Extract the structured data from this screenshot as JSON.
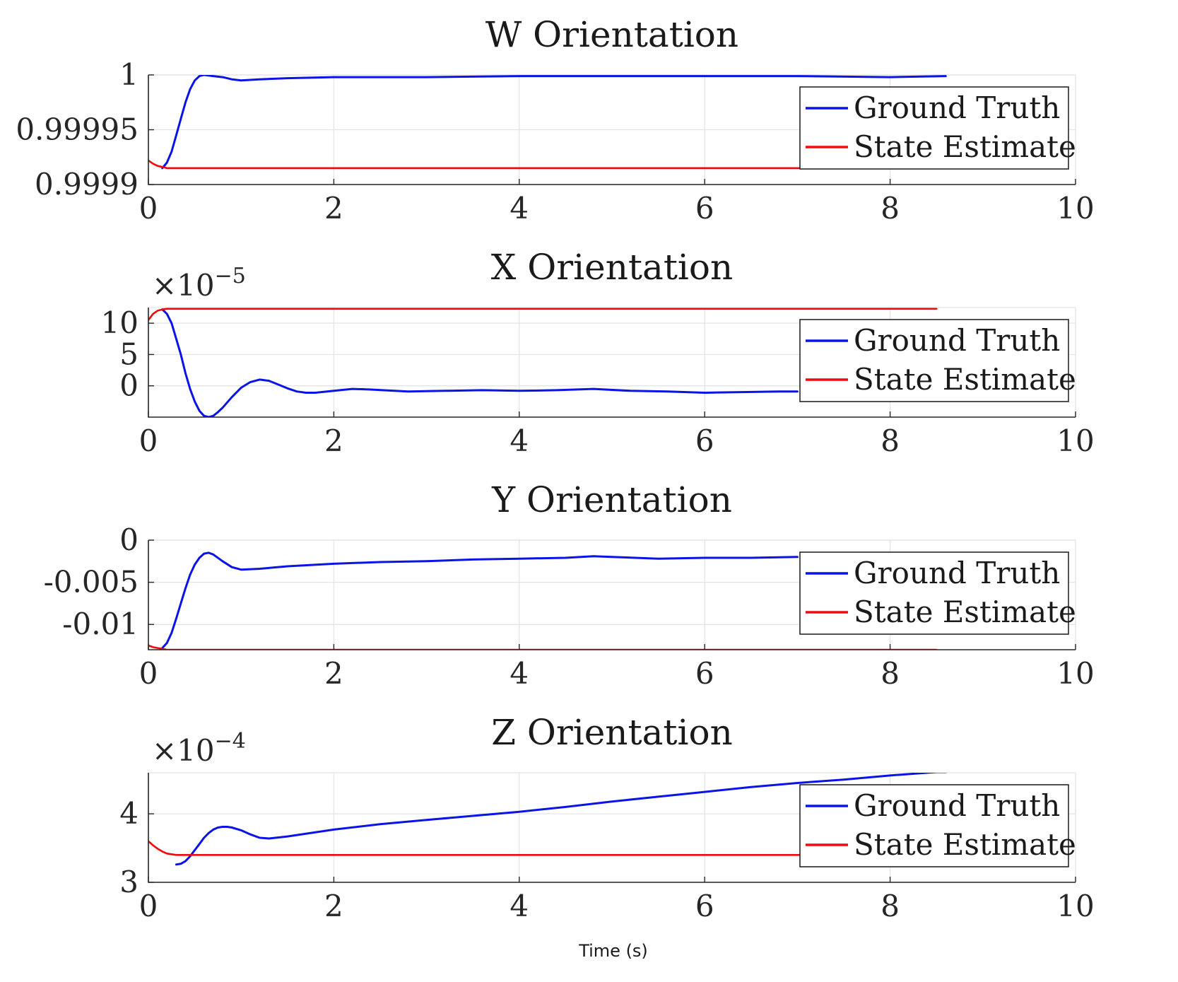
{
  "colors": {
    "ground_truth": "#0a14e6",
    "state_estimate": "#f00a0a"
  },
  "xlabel": "Time (s)",
  "chart_data": [
    {
      "type": "line",
      "title": "W Orientation",
      "multiplier": null,
      "xlim": [
        0,
        10
      ],
      "ylim": [
        0.9999,
        1.0
      ],
      "xticks": [
        0,
        2,
        4,
        6,
        8,
        10
      ],
      "yticks": [
        0.9999,
        0.99995,
        1
      ],
      "ytick_labels": [
        "0.9999",
        "0.99995",
        "1"
      ],
      "grid": true,
      "legend_position": "right",
      "series": [
        {
          "name": "Ground Truth",
          "color_key": "ground_truth",
          "x": [
            0.15,
            0.2,
            0.25,
            0.3,
            0.35,
            0.4,
            0.45,
            0.5,
            0.55,
            0.6,
            0.7,
            0.8,
            0.9,
            1.0,
            1.2,
            1.5,
            2.0,
            3.0,
            4.0,
            5.0,
            6.0,
            7.0,
            8.0,
            8.6
          ],
          "y": [
            0.999915,
            0.99992,
            0.99993,
            0.999945,
            0.99996,
            0.999975,
            0.999987,
            0.999995,
            0.999999,
            1.0,
            0.999999,
            0.999998,
            0.999996,
            0.999995,
            0.999996,
            0.999997,
            0.999998,
            0.999998,
            0.999999,
            0.999999,
            0.999999,
            0.999999,
            0.999998,
            0.999999
          ]
        },
        {
          "name": "State Estimate",
          "color_key": "state_estimate",
          "x": [
            0,
            0.05,
            0.1,
            0.15,
            0.2,
            1,
            2,
            4,
            6,
            8,
            8.5
          ],
          "y": [
            0.999922,
            0.999919,
            0.999917,
            0.999916,
            0.999915,
            0.999915,
            0.999915,
            0.999915,
            0.999915,
            0.999915,
            0.999915
          ]
        }
      ]
    },
    {
      "type": "line",
      "title": "X Orientation",
      "multiplier": "-5",
      "xlim": [
        0,
        10
      ],
      "ylim": [
        -5,
        12.5
      ],
      "xticks": [
        0,
        2,
        4,
        6,
        8,
        10
      ],
      "yticks": [
        0,
        5,
        10
      ],
      "ytick_labels": [
        "0",
        "5",
        "10"
      ],
      "grid": true,
      "legend_position": "right",
      "series": [
        {
          "name": "Ground Truth",
          "color_key": "ground_truth",
          "x": [
            0.15,
            0.2,
            0.25,
            0.3,
            0.35,
            0.4,
            0.45,
            0.5,
            0.55,
            0.6,
            0.65,
            0.7,
            0.75,
            0.8,
            0.9,
            1.0,
            1.1,
            1.2,
            1.3,
            1.4,
            1.5,
            1.6,
            1.7,
            1.8,
            2.0,
            2.2,
            2.4,
            2.8,
            3.2,
            3.6,
            4.0,
            4.4,
            4.8,
            5.2,
            5.6,
            6.0,
            6.4,
            6.8,
            7.0
          ],
          "y": [
            12.2,
            11.5,
            10.0,
            7.5,
            5.0,
            2.0,
            -0.5,
            -2.5,
            -4.0,
            -4.8,
            -5.0,
            -4.8,
            -4.2,
            -3.5,
            -1.8,
            -0.3,
            0.6,
            1.0,
            0.8,
            0.2,
            -0.4,
            -0.9,
            -1.1,
            -1.1,
            -0.8,
            -0.5,
            -0.6,
            -0.9,
            -0.8,
            -0.7,
            -0.8,
            -0.7,
            -0.5,
            -0.8,
            -0.9,
            -1.1,
            -1.0,
            -0.9,
            -0.9
          ]
        },
        {
          "name": "State Estimate",
          "color_key": "state_estimate",
          "x": [
            0,
            0.05,
            0.1,
            0.15,
            0.2,
            1,
            2,
            4,
            6,
            8,
            8.5
          ],
          "y": [
            10.5,
            11.5,
            12.0,
            12.2,
            12.3,
            12.3,
            12.3,
            12.3,
            12.3,
            12.3,
            12.3
          ]
        }
      ]
    },
    {
      "type": "line",
      "title": "Y Orientation",
      "multiplier": null,
      "xlim": [
        0,
        10
      ],
      "ylim": [
        -0.013,
        0
      ],
      "xticks": [
        0,
        2,
        4,
        6,
        8,
        10
      ],
      "yticks": [
        -0.01,
        -0.005,
        0
      ],
      "ytick_labels": [
        "-0.01",
        "-0.005",
        "0"
      ],
      "grid": true,
      "legend_position": "right",
      "series": [
        {
          "name": "Ground Truth",
          "color_key": "ground_truth",
          "x": [
            0.15,
            0.2,
            0.25,
            0.3,
            0.35,
            0.4,
            0.45,
            0.5,
            0.55,
            0.6,
            0.65,
            0.7,
            0.8,
            0.9,
            1.0,
            1.2,
            1.5,
            2.0,
            2.5,
            3.0,
            3.5,
            4.0,
            4.5,
            4.8,
            5.0,
            5.5,
            6.0,
            6.5,
            7.0
          ],
          "y": [
            -0.0128,
            -0.0122,
            -0.011,
            -0.0093,
            -0.0075,
            -0.0057,
            -0.0041,
            -0.0029,
            -0.0021,
            -0.0016,
            -0.0015,
            -0.0017,
            -0.0025,
            -0.0032,
            -0.0035,
            -0.0034,
            -0.0031,
            -0.0028,
            -0.0026,
            -0.0025,
            -0.0023,
            -0.0022,
            -0.0021,
            -0.0019,
            -0.002,
            -0.0022,
            -0.0021,
            -0.0021,
            -0.002
          ]
        },
        {
          "name": "State Estimate",
          "color_key": "state_estimate",
          "x": [
            0,
            0.05,
            0.1,
            0.15,
            0.2,
            1,
            2,
            4,
            6,
            8,
            8.5
          ],
          "y": [
            -0.0125,
            -0.0127,
            -0.0128,
            -0.0129,
            -0.013,
            -0.013,
            -0.013,
            -0.013,
            -0.013,
            -0.013,
            -0.013
          ]
        }
      ]
    },
    {
      "type": "line",
      "title": "Z Orientation",
      "multiplier": "-4",
      "xlim": [
        0,
        10
      ],
      "ylim": [
        3,
        4.6
      ],
      "xticks": [
        0,
        2,
        4,
        6,
        8,
        10
      ],
      "yticks": [
        3,
        4
      ],
      "ytick_labels": [
        "3",
        "4"
      ],
      "grid": true,
      "legend_position": "right",
      "series": [
        {
          "name": "Ground Truth",
          "color_key": "ground_truth",
          "x": [
            0.3,
            0.35,
            0.4,
            0.45,
            0.5,
            0.55,
            0.6,
            0.65,
            0.7,
            0.75,
            0.8,
            0.85,
            0.9,
            1.0,
            1.1,
            1.2,
            1.3,
            1.5,
            2.0,
            2.5,
            3.0,
            3.5,
            4.0,
            4.5,
            5.0,
            5.5,
            6.0,
            6.5,
            7.0,
            7.5,
            8.0,
            8.5,
            8.6
          ],
          "y": [
            3.26,
            3.27,
            3.31,
            3.38,
            3.47,
            3.56,
            3.65,
            3.72,
            3.77,
            3.8,
            3.81,
            3.81,
            3.8,
            3.76,
            3.7,
            3.65,
            3.64,
            3.67,
            3.77,
            3.85,
            3.91,
            3.97,
            4.03,
            4.1,
            4.18,
            4.25,
            4.32,
            4.39,
            4.45,
            4.5,
            4.56,
            4.61,
            4.61
          ]
        },
        {
          "name": "State Estimate",
          "color_key": "state_estimate",
          "x": [
            0,
            0.05,
            0.1,
            0.15,
            0.2,
            0.25,
            0.3,
            0.35,
            0.4,
            1,
            2,
            4,
            6,
            8,
            8.5
          ],
          "y": [
            3.6,
            3.54,
            3.49,
            3.45,
            3.42,
            3.41,
            3.4,
            3.4,
            3.4,
            3.4,
            3.4,
            3.4,
            3.4,
            3.4,
            3.4
          ]
        }
      ]
    }
  ]
}
